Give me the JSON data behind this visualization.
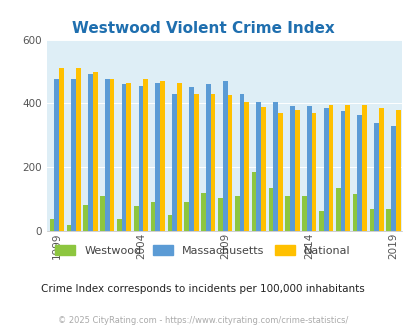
{
  "title": "Westwood Violent Crime Index",
  "years": [
    1999,
    2000,
    2001,
    2002,
    2003,
    2004,
    2005,
    2006,
    2007,
    2008,
    2009,
    2010,
    2011,
    2012,
    2013,
    2014,
    2015,
    2016,
    2017,
    2018,
    2019,
    2020,
    2021
  ],
  "westwood": [
    38,
    18,
    82,
    110,
    38,
    78,
    90,
    50,
    90,
    120,
    105,
    110,
    185,
    135,
    110,
    110,
    62,
    135,
    115,
    68,
    68,
    null,
    null
  ],
  "massachusetts": [
    475,
    478,
    492,
    475,
    460,
    455,
    463,
    430,
    450,
    460,
    470,
    430,
    405,
    405,
    393,
    393,
    385,
    375,
    363,
    340,
    330,
    null,
    null
  ],
  "national": [
    510,
    510,
    500,
    475,
    465,
    475,
    470,
    465,
    430,
    430,
    425,
    405,
    390,
    370,
    380,
    370,
    395,
    395,
    395,
    385,
    380,
    null,
    null
  ],
  "westwood_color": "#8dc63f",
  "massachusetts_color": "#5b9bd5",
  "national_color": "#ffc000",
  "bg_color": "#ffffff",
  "plot_bg": "#deeef6",
  "title_color": "#1f6faf",
  "ylabel_max": 600,
  "yticks": [
    0,
    200,
    400,
    600
  ],
  "subtitle": "Crime Index corresponds to incidents per 100,000 inhabitants",
  "footer": "© 2025 CityRating.com - https://www.cityrating.com/crime-statistics/",
  "xtick_years": [
    1999,
    2004,
    2009,
    2014,
    2019
  ]
}
